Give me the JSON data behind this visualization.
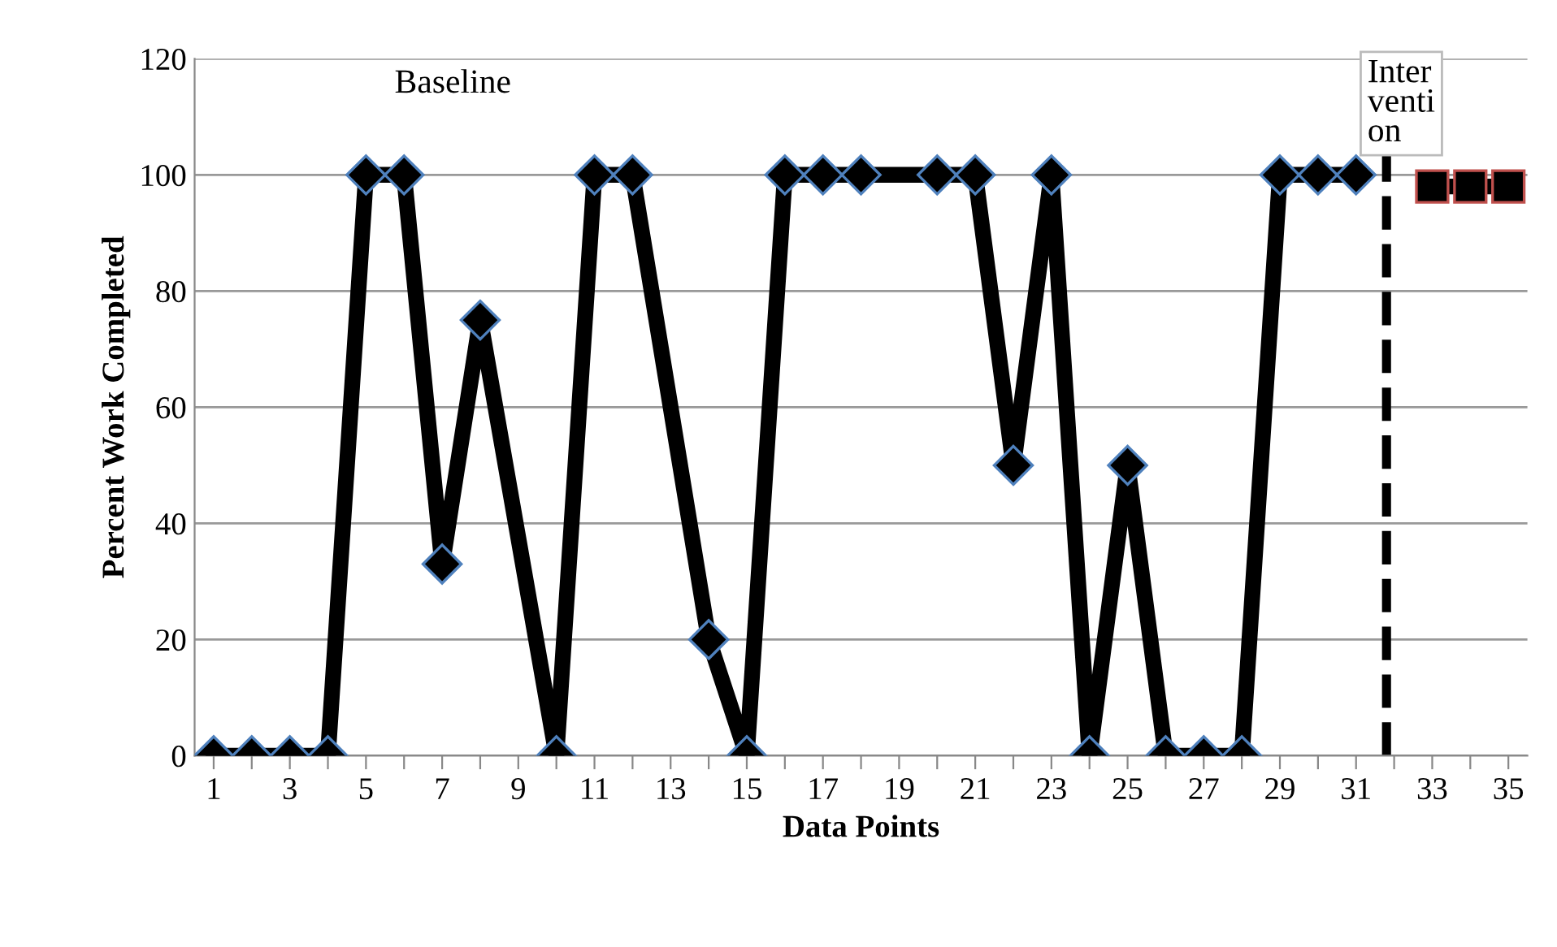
{
  "chart_data": {
    "type": "line",
    "xlabel": "Data Points",
    "ylabel": "Percent Work Completed",
    "x": [
      1,
      2,
      3,
      4,
      5,
      6,
      7,
      8,
      9,
      10,
      11,
      12,
      13,
      14,
      15,
      16,
      17,
      18,
      19,
      20,
      21,
      22,
      23,
      24,
      25,
      26,
      27,
      28,
      29,
      30,
      31,
      32,
      33,
      34,
      35
    ],
    "series": [
      {
        "color": "#000000",
        "marker": "diamond",
        "values": [
          0,
          0,
          0,
          0,
          100,
          100,
          33,
          75,
          null,
          0,
          100,
          100,
          null,
          20,
          0,
          100,
          100,
          100,
          null,
          100,
          100,
          50,
          100,
          0,
          50,
          0,
          0,
          0,
          100,
          100,
          100,
          null,
          null,
          null,
          null
        ]
      },
      {
        "color": "#000000",
        "marker": "square",
        "values": [
          null,
          null,
          null,
          null,
          null,
          null,
          null,
          null,
          null,
          null,
          null,
          null,
          null,
          null,
          null,
          null,
          null,
          null,
          null,
          null,
          null,
          null,
          null,
          null,
          null,
          null,
          null,
          null,
          null,
          null,
          null,
          null,
          98,
          98,
          98
        ]
      }
    ],
    "xlim": [
      0.5,
      35.5
    ],
    "xticks": [
      1,
      {
        "value": 2,
        "label": null
      },
      3,
      {
        "value": 4,
        "label": null
      },
      5,
      {
        "value": 6,
        "label": null
      },
      7,
      {
        "value": 8,
        "label": null
      },
      9,
      {
        "value": 10,
        "label": null
      },
      11,
      {
        "value": 12,
        "label": null
      },
      13,
      {
        "value": 14,
        "label": null
      },
      15,
      {
        "value": 16,
        "label": null
      },
      17,
      {
        "value": 18,
        "label": null
      },
      19,
      {
        "value": 20,
        "label": null
      },
      21,
      {
        "value": 22,
        "label": null
      },
      23,
      {
        "value": 24,
        "label": null
      },
      25,
      {
        "value": 26,
        "label": null
      },
      27,
      {
        "value": 28,
        "label": null
      },
      29,
      {
        "value": 30,
        "label": null
      },
      31,
      {
        "value": 32,
        "label": null
      },
      33,
      {
        "value": 34,
        "label": null
      },
      35
    ],
    "ylim": [
      0,
      120
    ],
    "yticks": [
      0,
      20,
      40,
      60,
      80,
      100,
      120
    ],
    "grid": "y",
    "ref_lines": [
      {
        "axis": "x",
        "value": 31.8,
        "line_style": "dashed",
        "color": "#000000"
      }
    ],
    "annotations": [
      "Baseline",
      "Intervention"
    ]
  }
}
